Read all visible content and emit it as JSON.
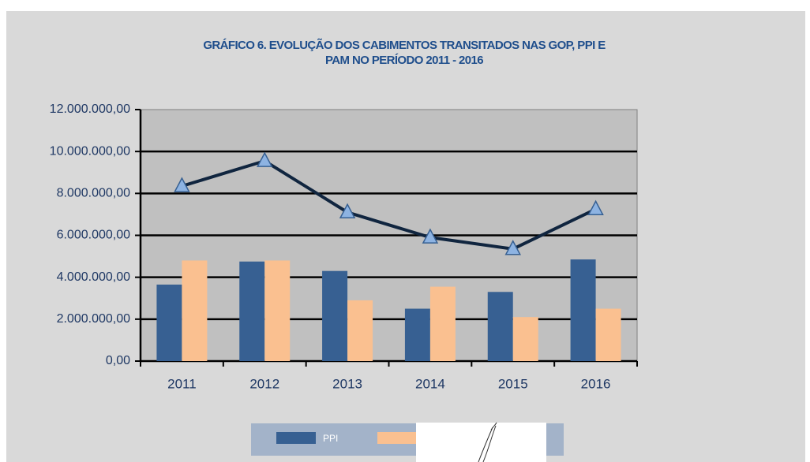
{
  "chart_data": {
    "type": "bar",
    "title": [
      "GRÁFICO 6. EVOLUÇÃO DOS CABIMENTOS TRANSITADOS NAS GOP, PPI E",
      "PAM NO PERÍODO 2011 - 2016"
    ],
    "categories": [
      "2011",
      "2012",
      "2013",
      "2014",
      "2015",
      "2016"
    ],
    "series": [
      {
        "name": "PPI",
        "color": "#376092",
        "values": [
          3650000,
          4750000,
          4300000,
          2500000,
          3300000,
          4850000
        ]
      },
      {
        "color": "#fac090",
        "values": [
          4800000,
          4800000,
          2900000,
          3550000,
          2100000,
          2500000
        ]
      },
      {
        "type": "line",
        "color": "#10253f",
        "marker_color": "#8db3e2",
        "values": [
          8350000,
          9550000,
          7100000,
          5900000,
          5350000,
          7250000
        ]
      }
    ],
    "ylim": [
      0,
      12000000
    ],
    "yticks": [
      {
        "value": 0,
        "label": "0,00"
      },
      {
        "value": 2000000,
        "label": "2.000.000,00"
      },
      {
        "value": 4000000,
        "label": "4.000.000,00"
      },
      {
        "value": 6000000,
        "label": "6.000.000,00"
      },
      {
        "value": 8000000,
        "label": "8.000.000,00"
      },
      {
        "value": 10000000,
        "label": "10.000.000,00"
      },
      {
        "value": 12000000,
        "label": "12.000.000,00"
      }
    ],
    "grid": true,
    "legend": "bottom"
  }
}
